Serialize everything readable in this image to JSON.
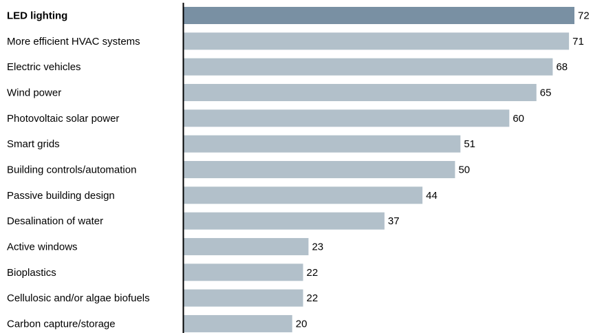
{
  "chart_data": {
    "type": "bar",
    "orientation": "horizontal",
    "categories": [
      "LED lighting",
      "More efficient HVAC systems",
      "Electric vehicles",
      "Wind power",
      "Photovoltaic solar power",
      "Smart grids",
      "Building controls/automation",
      "Passive building design",
      "Desalination of water",
      "Active windows",
      "Bioplastics",
      "Cellulosic and/or algae biofuels",
      "Carbon capture/storage"
    ],
    "values": [
      72,
      71,
      68,
      65,
      60,
      51,
      50,
      44,
      37,
      23,
      22,
      22,
      20
    ],
    "highlighted_category": "LED lighting",
    "xlim": [
      0,
      72
    ],
    "grid": false,
    "legend": "none",
    "colors": {
      "bar": "#b2c0ca",
      "bar_highlight": "#7990a3",
      "axis": "#000000",
      "text": "#000000"
    }
  }
}
